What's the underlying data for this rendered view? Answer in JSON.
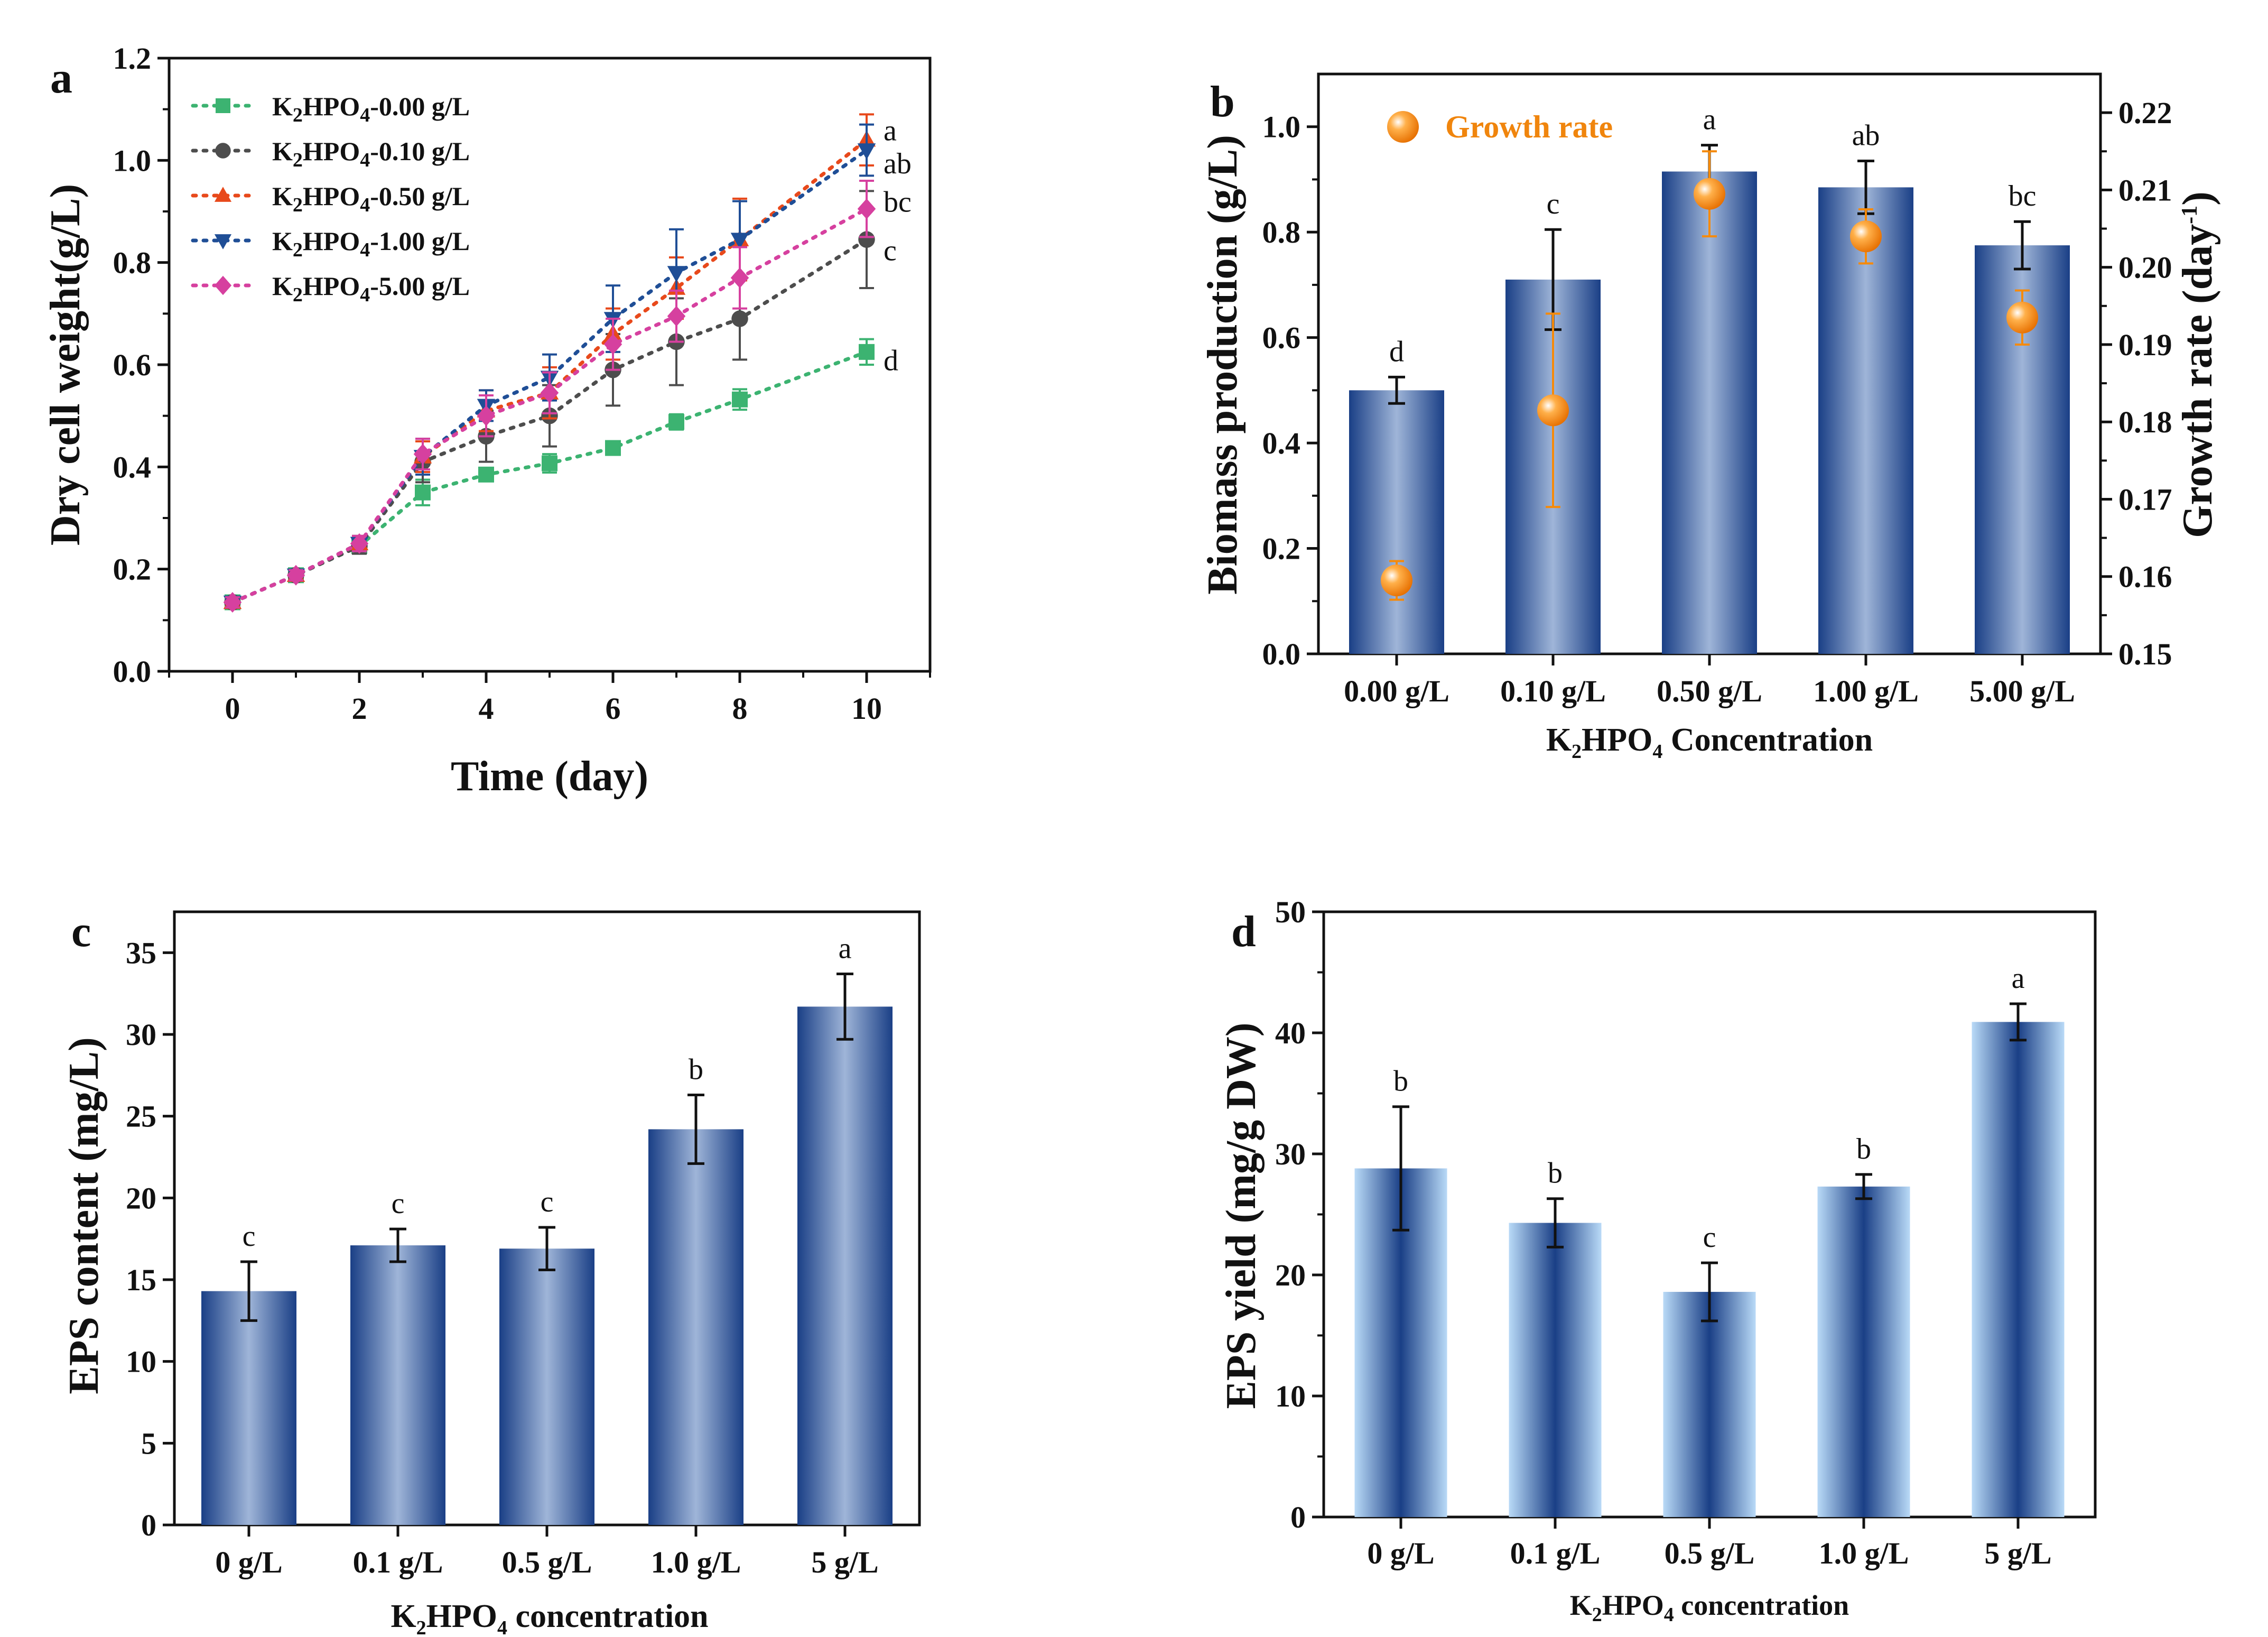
{
  "colors": {
    "axis": "#111111",
    "bar_dark": "#1a3f86",
    "bar_light": "#b9daf7",
    "growth_marker": "#f58a0a",
    "growth_label": "#f0850d"
  },
  "chart_data": [
    {
      "panel": "a",
      "type": "line",
      "ylabel": "Dry cell weight(g/L)",
      "xlabel": "Time (day)",
      "xlim": [
        -1,
        11
      ],
      "ylim": [
        0,
        1.2
      ],
      "xticks": [
        0,
        2,
        4,
        6,
        8,
        10
      ],
      "xtick_labels": [
        "0",
        "2",
        "4",
        "6",
        "8",
        "10"
      ],
      "yticks": [
        0,
        0.2,
        0.4,
        0.6,
        0.8,
        1.0,
        1.2
      ],
      "ytick_labels": [
        "0.0",
        "0.2",
        "0.4",
        "0.6",
        "0.8",
        "1.0",
        "1.2"
      ],
      "x": [
        0,
        1,
        2,
        3,
        4,
        5,
        6,
        7,
        8,
        10
      ],
      "legend_position": "top-left",
      "legend_prefix": "K",
      "legend_sub_2": "2",
      "legend_mid": "HPO",
      "legend_sub_4": "4",
      "series": [
        {
          "name": "K2HPO4-0.00 g/L",
          "conc_label": "-0.00 g/L",
          "color": "#3cb371",
          "marker": "square",
          "values": [
            0.135,
            0.188,
            0.245,
            0.35,
            0.385,
            0.407,
            0.437,
            0.488,
            0.532,
            0.625
          ],
          "errors": [
            0.01,
            0.01,
            0.01,
            0.025,
            0.01,
            0.018,
            0.01,
            0.015,
            0.02,
            0.025
          ],
          "sig": "d"
        },
        {
          "name": "K2HPO4-0.10 g/L",
          "conc_label": "-0.10 g/L",
          "color": "#4d4d4d",
          "marker": "circle",
          "values": [
            0.135,
            0.188,
            0.245,
            0.41,
            0.46,
            0.5,
            0.59,
            0.645,
            0.69,
            0.845
          ],
          "errors": [
            0.01,
            0.01,
            0.015,
            0.04,
            0.05,
            0.06,
            0.07,
            0.085,
            0.08,
            0.095
          ],
          "sig": "c"
        },
        {
          "name": "K2HPO4-0.50 g/L",
          "conc_label": "-0.50 g/L",
          "color": "#e8491b",
          "marker": "triangle-up",
          "values": [
            0.135,
            0.188,
            0.25,
            0.42,
            0.51,
            0.545,
            0.66,
            0.75,
            0.845,
            1.04
          ],
          "errors": [
            0.01,
            0.01,
            0.015,
            0.03,
            0.04,
            0.05,
            0.05,
            0.06,
            0.08,
            0.05
          ],
          "sig": "a"
        },
        {
          "name": "K2HPO4-1.00 g/L",
          "conc_label": "-1.00 g/L",
          "color": "#1f4e96",
          "marker": "triangle-down",
          "values": [
            0.135,
            0.188,
            0.25,
            0.42,
            0.52,
            0.575,
            0.69,
            0.78,
            0.845,
            1.02
          ],
          "errors": [
            0.01,
            0.01,
            0.015,
            0.035,
            0.03,
            0.045,
            0.065,
            0.085,
            0.075,
            0.05
          ],
          "sig": "ab"
        },
        {
          "name": "K2HPO4-5.00 g/L",
          "conc_label": "-5.00 g/L",
          "color": "#d6409f",
          "marker": "diamond",
          "values": [
            0.135,
            0.188,
            0.25,
            0.425,
            0.5,
            0.545,
            0.64,
            0.695,
            0.77,
            0.905
          ],
          "errors": [
            0.01,
            0.01,
            0.015,
            0.03,
            0.04,
            0.04,
            0.05,
            0.05,
            0.06,
            0.055
          ],
          "sig": "bc"
        }
      ]
    },
    {
      "panel": "b",
      "type": "bar",
      "categories": [
        "0.00 g/L",
        "0.10 g/L",
        "0.50 g/L",
        "1.00 g/L",
        "5.00 g/L"
      ],
      "values": [
        0.5,
        0.71,
        0.915,
        0.885,
        0.775
      ],
      "errors": [
        0.025,
        0.095,
        0.05,
        0.05,
        0.045
      ],
      "sig": [
        "d",
        "c",
        "a",
        "ab",
        "bc"
      ],
      "ylabel": "Biomass production (g/L)",
      "ylim": [
        0,
        1.1
      ],
      "yticks": [
        0,
        0.2,
        0.4,
        0.6,
        0.8,
        1.0
      ],
      "ytick_labels": [
        "0.0",
        "0.2",
        "0.4",
        "0.6",
        "0.8",
        "1.0"
      ],
      "xlabel_main": "K",
      "xlabel_sub_2": "2",
      "xlabel_mid": "HPO",
      "xlabel_sub_4": "4",
      "xlabel_tail": " Concentration",
      "y2label_main": "Growth rate (day",
      "y2label_sup": "-1",
      "y2label_tail": ")",
      "y2lim": [
        0.15,
        0.225
      ],
      "y2ticks": [
        0.15,
        0.16,
        0.17,
        0.18,
        0.19,
        0.2,
        0.21,
        0.22
      ],
      "y2tick_labels": [
        "0.15",
        "0.16",
        "0.17",
        "0.18",
        "0.19",
        "0.20",
        "0.21",
        "0.22"
      ],
      "growth_rate": {
        "name": "Growth rate",
        "values": [
          0.1595,
          0.1815,
          0.2095,
          0.204,
          0.1935
        ],
        "errors": [
          0.0025,
          0.0125,
          0.0055,
          0.0035,
          0.0035
        ]
      },
      "legend_position": "top-left"
    },
    {
      "panel": "c",
      "type": "bar",
      "categories": [
        "0 g/L",
        "0.1 g/L",
        "0.5 g/L",
        "1.0 g/L",
        "5 g/L"
      ],
      "values": [
        14.3,
        17.1,
        16.9,
        24.2,
        31.7
      ],
      "errors": [
        1.8,
        1.0,
        1.3,
        2.1,
        2.0
      ],
      "sig": [
        "c",
        "c",
        "c",
        "b",
        "a"
      ],
      "ylabel": "EPS content (mg/L)",
      "ylim": [
        0,
        37.5
      ],
      "yticks": [
        0,
        5,
        10,
        15,
        20,
        25,
        30,
        35
      ],
      "ytick_labels": [
        "0",
        "5",
        "10",
        "15",
        "20",
        "25",
        "30",
        "35"
      ],
      "xlabel_main": "K",
      "xlabel_sub_2": "2",
      "xlabel_mid": "HPO",
      "xlabel_sub_4": "4",
      "xlabel_tail": " concentration"
    },
    {
      "panel": "d",
      "type": "bar",
      "categories": [
        "0 g/L",
        "0.1 g/L",
        "0.5 g/L",
        "1.0 g/L",
        "5 g/L"
      ],
      "values": [
        28.8,
        24.3,
        18.6,
        27.3,
        40.9
      ],
      "errors": [
        5.1,
        2.0,
        2.4,
        1.0,
        1.5
      ],
      "sig": [
        "b",
        "b",
        "c",
        "b",
        "a"
      ],
      "ylabel": "EPS yield (mg/g DW)",
      "ylim": [
        0,
        50
      ],
      "yticks": [
        0,
        10,
        20,
        30,
        40,
        50
      ],
      "ytick_labels": [
        "0",
        "10",
        "20",
        "30",
        "40",
        "50"
      ],
      "xlabel_main": "K",
      "xlabel_sub_2": "2",
      "xlabel_mid": "HPO",
      "xlabel_sub_4": "4",
      "xlabel_tail": " concentration"
    }
  ]
}
